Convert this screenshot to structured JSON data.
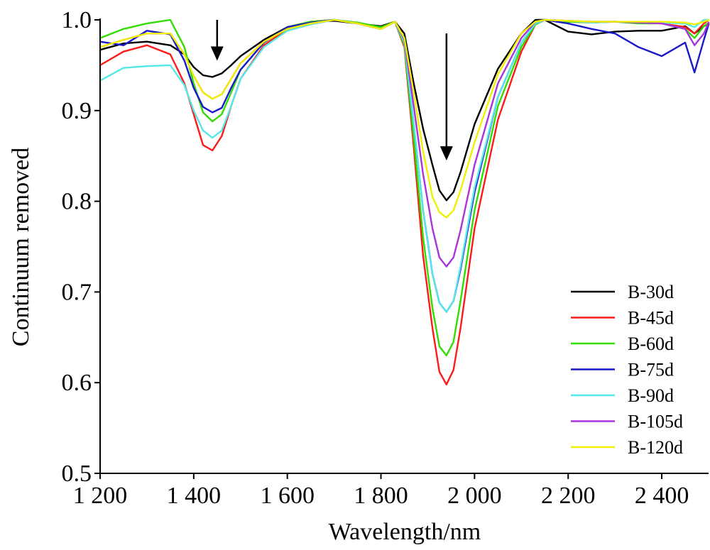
{
  "chart_data": {
    "type": "line",
    "xlabel": "Wavelength/nm",
    "ylabel": "Continuum removed",
    "xlim": [
      1200,
      2500
    ],
    "ylim": [
      0.5,
      1.0
    ],
    "x_ticks": [
      1200,
      1400,
      1600,
      1800,
      2000,
      2200,
      2400
    ],
    "x_tick_labels": [
      "1 200",
      "1 400",
      "1 600",
      "1 800",
      "2 000",
      "2 200",
      "2 400"
    ],
    "y_ticks": [
      0.5,
      0.6,
      0.7,
      0.8,
      0.9,
      1.0
    ],
    "y_tick_labels": [
      "0.5",
      "0.6",
      "0.7",
      "0.8",
      "0.9",
      "1.0"
    ],
    "grid": false,
    "legend_position": "bottom-right",
    "annotations": [
      {
        "type": "arrow-down",
        "x": 1450,
        "y_from": 1.0,
        "y_to": 0.955
      },
      {
        "type": "arrow-down",
        "x": 1940,
        "y_from": 0.985,
        "y_to": 0.845
      }
    ],
    "x": [
      1200,
      1250,
      1300,
      1350,
      1380,
      1400,
      1420,
      1440,
      1460,
      1480,
      1500,
      1550,
      1600,
      1650,
      1700,
      1750,
      1800,
      1830,
      1850,
      1870,
      1890,
      1910,
      1925,
      1940,
      1955,
      1970,
      2000,
      2050,
      2100,
      2130,
      2150,
      2200,
      2250,
      2300,
      2350,
      2400,
      2450,
      2470,
      2490,
      2500
    ],
    "series": [
      {
        "name": "B-30d",
        "color": "#000000",
        "values": [
          0.967,
          0.974,
          0.976,
          0.972,
          0.962,
          0.948,
          0.939,
          0.937,
          0.941,
          0.95,
          0.96,
          0.978,
          0.992,
          0.998,
          0.999,
          0.996,
          0.993,
          0.998,
          0.985,
          0.93,
          0.88,
          0.84,
          0.812,
          0.801,
          0.81,
          0.832,
          0.885,
          0.946,
          0.985,
          1.0,
          1.0,
          0.987,
          0.984,
          0.987,
          0.988,
          0.988,
          0.993,
          0.985,
          0.993,
          0.996
        ]
      },
      {
        "name": "B-45d",
        "color": "#ff1a1a",
        "values": [
          0.95,
          0.965,
          0.972,
          0.962,
          0.93,
          0.896,
          0.862,
          0.856,
          0.872,
          0.905,
          0.935,
          0.972,
          0.99,
          0.998,
          1.0,
          0.996,
          0.99,
          0.998,
          0.97,
          0.86,
          0.74,
          0.66,
          0.612,
          0.598,
          0.614,
          0.66,
          0.77,
          0.89,
          0.965,
          0.995,
          1.0,
          0.998,
          0.997,
          0.998,
          0.997,
          0.996,
          0.992,
          0.985,
          0.996,
          1.0
        ]
      },
      {
        "name": "B-60d",
        "color": "#33dd00",
        "values": [
          0.98,
          0.99,
          0.996,
          1.0,
          0.97,
          0.93,
          0.898,
          0.888,
          0.896,
          0.92,
          0.945,
          0.975,
          0.992,
          0.998,
          1.0,
          0.997,
          0.992,
          0.998,
          0.972,
          0.87,
          0.76,
          0.682,
          0.64,
          0.63,
          0.645,
          0.69,
          0.79,
          0.905,
          0.97,
          0.995,
          1.0,
          0.998,
          0.997,
          0.998,
          0.996,
          0.996,
          0.99,
          0.98,
          0.993,
          0.997
        ]
      },
      {
        "name": "B-75d",
        "color": "#1a1acc",
        "values": [
          0.976,
          0.972,
          0.988,
          0.984,
          0.955,
          0.925,
          0.904,
          0.898,
          0.903,
          0.925,
          0.945,
          0.975,
          0.992,
          0.997,
          1.0,
          0.996,
          0.99,
          0.998,
          0.975,
          0.885,
          0.79,
          0.72,
          0.688,
          0.678,
          0.69,
          0.725,
          0.81,
          0.915,
          0.975,
          0.996,
          1.0,
          0.996,
          0.99,
          0.985,
          0.97,
          0.96,
          0.975,
          0.942,
          0.978,
          0.995
        ]
      },
      {
        "name": "B-90d",
        "color": "#55e8e8",
        "values": [
          0.933,
          0.947,
          0.949,
          0.95,
          0.928,
          0.9,
          0.878,
          0.87,
          0.878,
          0.905,
          0.935,
          0.97,
          0.988,
          0.995,
          1.0,
          0.996,
          0.99,
          0.998,
          0.975,
          0.885,
          0.79,
          0.72,
          0.688,
          0.678,
          0.69,
          0.728,
          0.815,
          0.915,
          0.975,
          0.996,
          1.0,
          0.999,
          0.997,
          0.998,
          0.997,
          0.997,
          0.996,
          0.992,
          1.0,
          1.0
        ]
      },
      {
        "name": "B-105d",
        "color": "#aa33dd",
        "values": [
          0.97,
          0.978,
          0.985,
          0.985,
          0.962,
          0.938,
          0.92,
          0.913,
          0.918,
          0.935,
          0.952,
          0.976,
          0.99,
          0.996,
          1.0,
          0.996,
          0.99,
          0.998,
          0.978,
          0.905,
          0.83,
          0.77,
          0.738,
          0.728,
          0.738,
          0.768,
          0.84,
          0.93,
          0.98,
          0.998,
          1.0,
          0.999,
          0.998,
          0.998,
          0.997,
          0.996,
          0.99,
          0.972,
          0.985,
          0.997
        ]
      },
      {
        "name": "B-120d",
        "color": "#f0f000",
        "values": [
          0.97,
          0.978,
          0.985,
          0.985,
          0.962,
          0.938,
          0.92,
          0.913,
          0.918,
          0.935,
          0.952,
          0.976,
          0.99,
          0.996,
          1.0,
          0.996,
          0.99,
          0.998,
          0.98,
          0.92,
          0.855,
          0.805,
          0.788,
          0.782,
          0.79,
          0.812,
          0.865,
          0.94,
          0.985,
          0.998,
          1.0,
          0.999,
          0.998,
          0.998,
          0.998,
          0.998,
          0.997,
          0.995,
          0.998,
          1.0
        ]
      }
    ]
  }
}
